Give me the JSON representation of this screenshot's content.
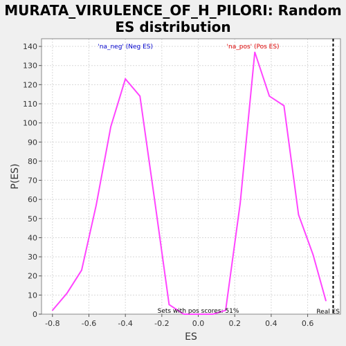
{
  "chart_data": {
    "type": "line",
    "title": [
      "MURATA_VIRULENCE_OF_H_PILORI: Random",
      "ES distribution"
    ],
    "xlabel": "ES",
    "ylabel": "P(ES)",
    "xlim": [
      -0.86,
      0.78
    ],
    "ylim": [
      0,
      144
    ],
    "xticks": [
      -0.8,
      -0.6,
      -0.4,
      -0.2,
      0.0,
      0.2,
      0.4,
      0.6
    ],
    "xtick_labels": [
      "-0.8",
      "-0.6",
      "-0.4",
      "-0.2",
      "0.0",
      "0.2",
      "0.4",
      "0.6"
    ],
    "yticks": [
      0,
      10,
      20,
      30,
      40,
      50,
      60,
      70,
      80,
      90,
      100,
      110,
      120,
      130,
      140
    ],
    "ytick_labels": [
      "0",
      "10",
      "20",
      "30",
      "40",
      "50",
      "60",
      "70",
      "80",
      "90",
      "100",
      "110",
      "120",
      "130",
      "140"
    ],
    "grid": true,
    "series": [
      {
        "color": "#ff44ff",
        "x": [
          -0.8,
          -0.72,
          -0.64,
          -0.56,
          -0.48,
          -0.4,
          -0.32,
          -0.24,
          -0.16,
          -0.08,
          0.0,
          0.08,
          0.15,
          0.23,
          0.31,
          0.39,
          0.47,
          0.55,
          0.63,
          0.7
        ],
        "y": [
          2,
          11,
          23,
          57,
          98,
          123,
          114,
          60,
          5,
          0,
          0,
          0,
          2,
          58,
          137,
          114,
          109,
          52,
          31,
          7
        ]
      }
    ],
    "annotations": {
      "neg_label": "'na_neg' (Neg ES)",
      "pos_label": "'na_pos' (Pos ES)",
      "neg_color": "#0000cc",
      "pos_color": "#dd0000",
      "pos_scores_text": "Sets with pos scores: 51%",
      "real_es_label": "Real ES",
      "real_es_value": 0.74
    }
  }
}
